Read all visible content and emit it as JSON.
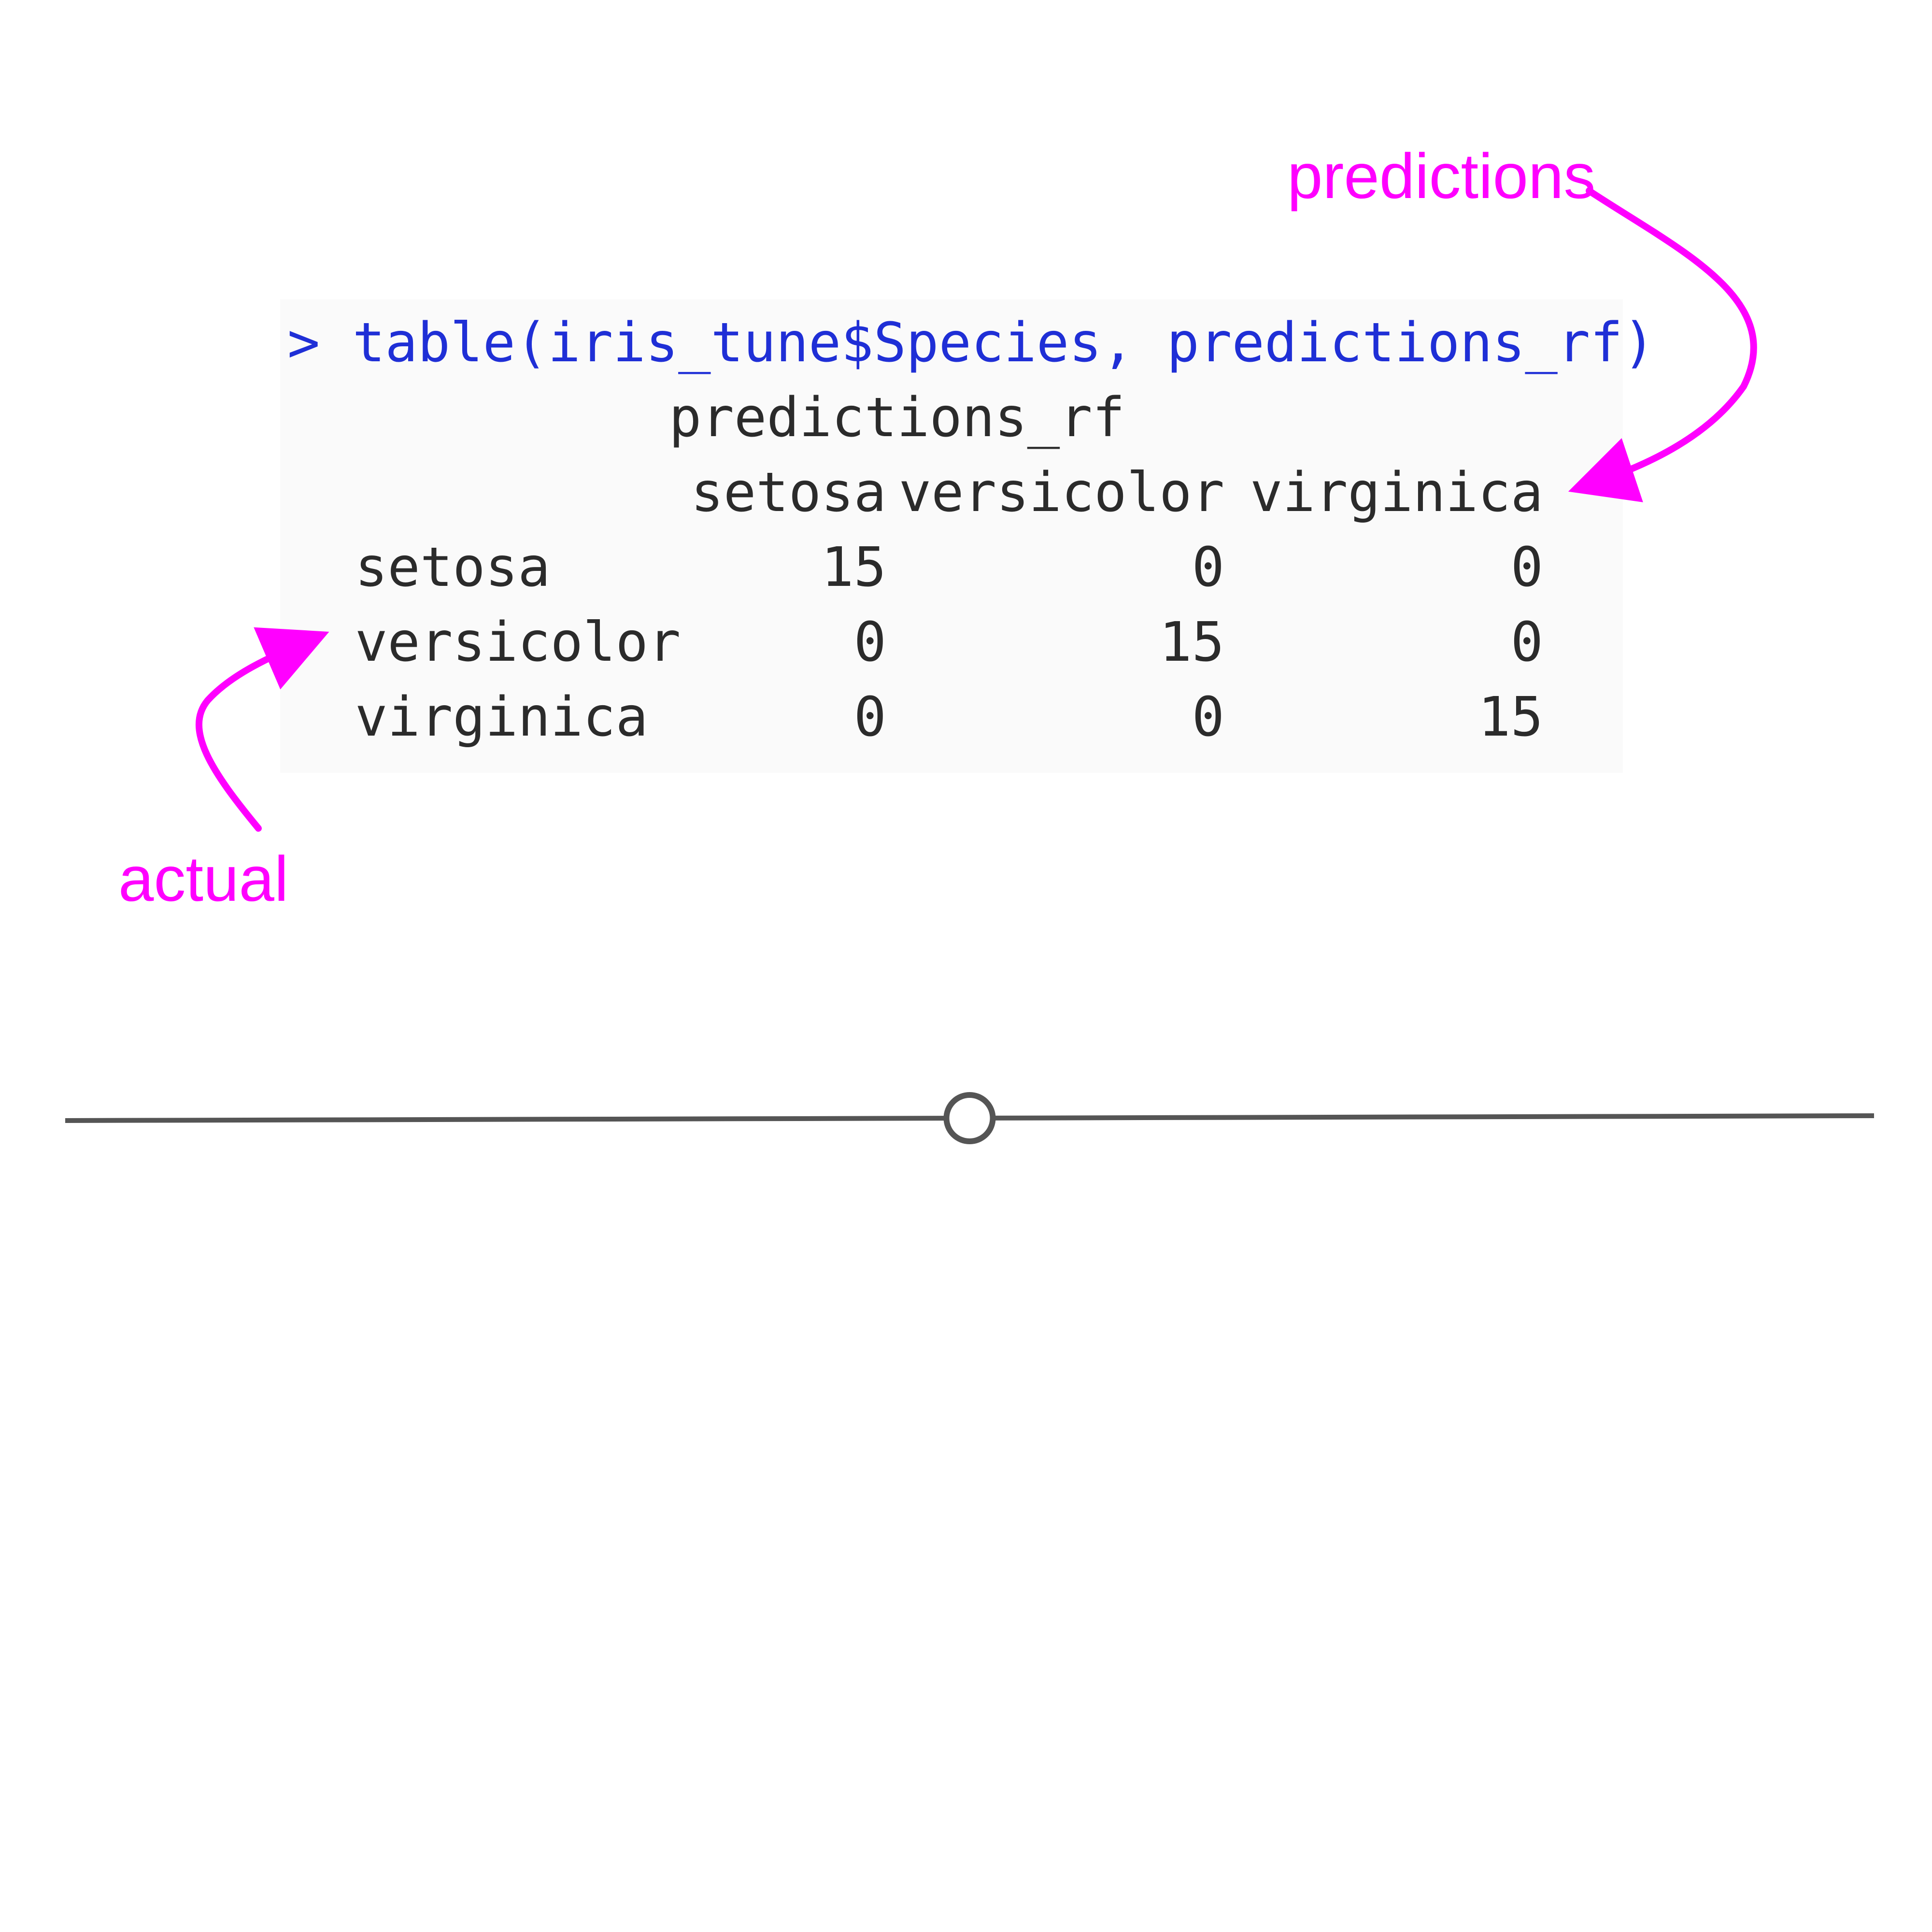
{
  "console": {
    "prompt": "> table(iris_tune$Species, predictions_rf)",
    "dimnames_label": "predictions_rf",
    "columns": [
      "setosa",
      "versicolor",
      "virginica"
    ],
    "rows": [
      {
        "label": "setosa",
        "values": [
          "15",
          "0",
          "0"
        ]
      },
      {
        "label": "versicolor",
        "values": [
          "0",
          "15",
          "0"
        ]
      },
      {
        "label": "virginica",
        "values": [
          "0",
          "0",
          "15"
        ]
      }
    ]
  },
  "annotations": {
    "predictions_label": "predictions",
    "actual_label": "actual",
    "color": "#ff00ff"
  },
  "slider": {
    "value": 0.5
  }
}
